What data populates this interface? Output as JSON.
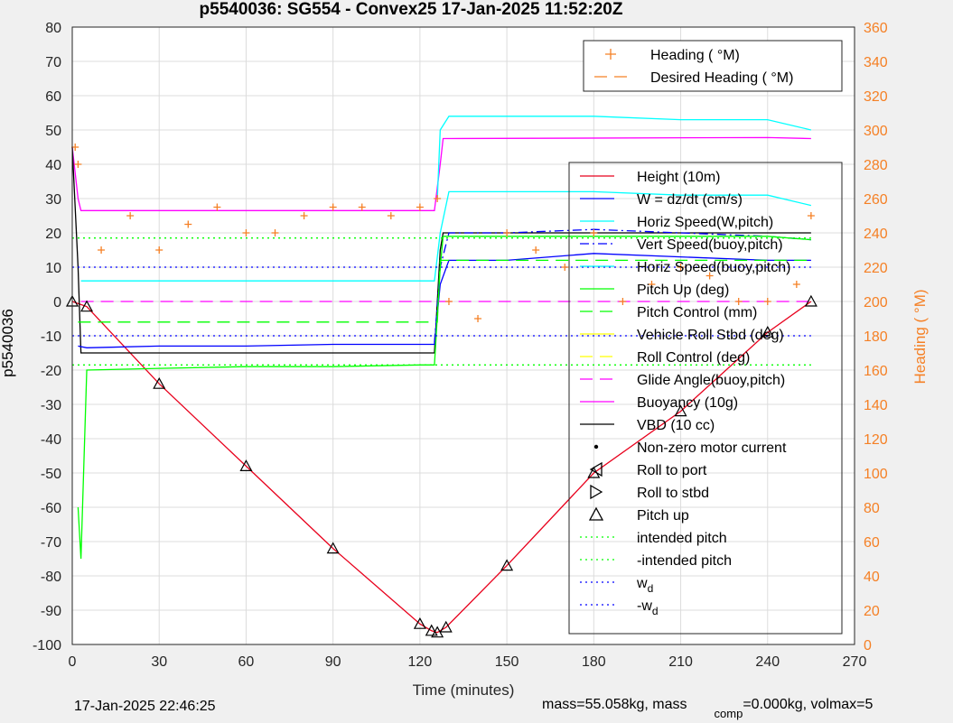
{
  "chart_data": {
    "type": "line",
    "title": "p5540036: SG554 - Convex25 17-Jan-2025 11:52:20Z",
    "xlabel": "Time (minutes)",
    "ylabel": "p5540036",
    "ylabel_right": "Heading ( °M)",
    "xlim": [
      0,
      270
    ],
    "ylim": [
      -100,
      80
    ],
    "ylim_right": [
      0,
      360
    ],
    "xticks": [
      0,
      30,
      60,
      90,
      120,
      150,
      180,
      210,
      240,
      270
    ],
    "yticks": [
      -100,
      -90,
      -80,
      -70,
      -60,
      -50,
      -40,
      -30,
      -20,
      -10,
      0,
      10,
      20,
      30,
      40,
      50,
      60,
      70,
      80
    ],
    "yticks_right": [
      0,
      20,
      40,
      60,
      80,
      100,
      120,
      140,
      160,
      180,
      200,
      220,
      240,
      260,
      280,
      300,
      320,
      340,
      360
    ],
    "grid": true,
    "legend_heading": [
      {
        "label": "Heading ( °M)",
        "color": "#f58025",
        "style": "plus"
      },
      {
        "label": "Desired Heading ( °M)",
        "color": "#f58025",
        "style": "dash"
      }
    ],
    "legend_main": [
      {
        "label": "Height (10m)",
        "color": "#e8001c",
        "style": "line"
      },
      {
        "label": "W = dz/dt (cm/s)",
        "color": "#0000ff",
        "style": "line"
      },
      {
        "label": "Horiz Speed(W,pitch)",
        "color": "#00ffff",
        "style": "line"
      },
      {
        "label": "Vert Speed(buoy,pitch)",
        "color": "#0000ff",
        "style": "dashdot"
      },
      {
        "label": "Horiz Speed(buoy,pitch)",
        "color": "#00ffff",
        "style": "line"
      },
      {
        "label": "Pitch Up (deg)",
        "color": "#00ff00",
        "style": "line"
      },
      {
        "label": "Pitch Control (mm)",
        "color": "#00ff00",
        "style": "dash"
      },
      {
        "label": "Vehicle Roll Stbd (deg)",
        "color": "#ffff00",
        "style": "line"
      },
      {
        "label": "Roll Control (deg)",
        "color": "#ffff00",
        "style": "dash"
      },
      {
        "label": "Glide Angle(buoy,pitch)",
        "color": "#ff00ff",
        "style": "dash"
      },
      {
        "label": "Buoyancy (10g)",
        "color": "#ff00ff",
        "style": "line"
      },
      {
        "label": "VBD (10 cc)",
        "color": "#000000",
        "style": "line"
      },
      {
        "label": "Non-zero motor current",
        "color": "#000000",
        "style": "dot"
      },
      {
        "label": "Roll to port",
        "color": "#000000",
        "style": "tri-left"
      },
      {
        "label": "Roll to stbd",
        "color": "#000000",
        "style": "tri-right"
      },
      {
        "label": "Pitch up",
        "color": "#000000",
        "style": "tri-up"
      },
      {
        "label": "intended pitch",
        "color": "#00ff00",
        "style": "dotted"
      },
      {
        "label": "-intended pitch",
        "color": "#00ff00",
        "style": "dotted"
      },
      {
        "label": "w_d",
        "color": "#0000ff",
        "style": "dotted"
      },
      {
        "label": "-w_d",
        "color": "#0000ff",
        "style": "dotted"
      }
    ],
    "series": [
      {
        "name": "Height (10m)",
        "x": [
          0,
          5,
          30,
          60,
          90,
          120,
          124,
          126,
          129,
          150,
          180,
          210,
          240,
          255
        ],
        "y": [
          0,
          -1.5,
          -24,
          -48,
          -72,
          -94,
          -96,
          -96.5,
          -95,
          -77,
          -50,
          -32,
          -9,
          0
        ]
      },
      {
        "name": "Buoyancy (10g)",
        "x": [
          0,
          2,
          3,
          125,
          127,
          128,
          240,
          255
        ],
        "y": [
          45,
          30,
          26.5,
          26.5,
          40,
          47.5,
          47.8,
          47.5
        ]
      },
      {
        "name": "VBD (10 cc)",
        "x": [
          0,
          2,
          3,
          125,
          127,
          128,
          255
        ],
        "y": [
          45,
          10,
          -15,
          -15,
          15,
          20,
          20
        ]
      },
      {
        "name": "W = dz/dt (cm/s)",
        "x": [
          2,
          5,
          30,
          60,
          90,
          120,
          125,
          127,
          130,
          150,
          180,
          210,
          240,
          255
        ],
        "y": [
          -13,
          -13.5,
          -13,
          -13,
          -12.5,
          -12.5,
          -12.5,
          5,
          12,
          12,
          14,
          13,
          12,
          12
        ]
      },
      {
        "name": "Horiz Speed(W,pitch)",
        "x": [
          126,
          127,
          130,
          150,
          180,
          210,
          240,
          255
        ],
        "y": [
          30,
          50,
          54,
          54,
          54,
          53,
          53,
          50
        ]
      },
      {
        "name": "Horiz Speed(buoy,pitch)",
        "x": [
          3,
          30,
          60,
          90,
          125,
          127,
          130,
          150,
          180,
          210,
          240,
          255
        ],
        "y": [
          6,
          6,
          6,
          6,
          6,
          20,
          32,
          32,
          32,
          31,
          31,
          28
        ]
      },
      {
        "name": "Vert Speed(buoy,pitch)",
        "x": [
          125,
          127,
          130,
          150,
          180,
          210,
          240,
          255
        ],
        "y": [
          -12,
          10,
          20,
          20,
          21,
          20,
          19,
          18
        ]
      },
      {
        "name": "Pitch Up (deg)",
        "x": [
          2,
          3,
          5,
          30,
          60,
          90,
          120,
          125,
          127,
          128,
          150,
          180,
          210,
          240,
          255
        ],
        "y": [
          -60,
          -75,
          -20,
          -19.5,
          -19,
          -19,
          -18.5,
          -18.5,
          10,
          19,
          19,
          19,
          19,
          19,
          18
        ]
      },
      {
        "name": "Pitch Control (mm)",
        "x": [
          2,
          126,
          127,
          255
        ],
        "y": [
          -6,
          -6,
          12,
          12
        ]
      },
      {
        "name": "Glide Angle(buoy,pitch)",
        "x": [
          3,
          255
        ],
        "y": [
          0,
          0
        ]
      },
      {
        "name": "intended pitch",
        "x": [
          0,
          255
        ],
        "y": [
          18.5,
          18.5
        ]
      },
      {
        "name": "-intended pitch",
        "x": [
          0,
          255
        ],
        "y": [
          -18.5,
          -18.5
        ]
      },
      {
        "name": "w_d",
        "x": [
          0,
          255
        ],
        "y": [
          10,
          10
        ]
      },
      {
        "name": "-w_d",
        "x": [
          0,
          255
        ],
        "y": [
          -10,
          -10
        ]
      }
    ],
    "heading_series": [
      {
        "name": "Heading ( °M)",
        "x": [
          1,
          2,
          10,
          20,
          30,
          40,
          50,
          60,
          70,
          80,
          90,
          100,
          110,
          120,
          126,
          130,
          140,
          150,
          160,
          170,
          180,
          190,
          200,
          210,
          220,
          230,
          240,
          250,
          255
        ],
        "y": [
          290,
          280,
          230,
          250,
          230,
          245,
          255,
          240,
          240,
          250,
          255,
          255,
          250,
          255,
          260,
          200,
          190,
          240,
          230,
          220,
          240,
          200,
          210,
          220,
          215,
          200,
          200,
          210,
          250
        ]
      }
    ]
  },
  "footer": {
    "timestamp": "17-Jan-2025 22:46:25",
    "mass_text": "mass=55.058kg, mass",
    "comp_sub": "comp",
    "comp_text": "=0.000kg, volmax=5"
  }
}
